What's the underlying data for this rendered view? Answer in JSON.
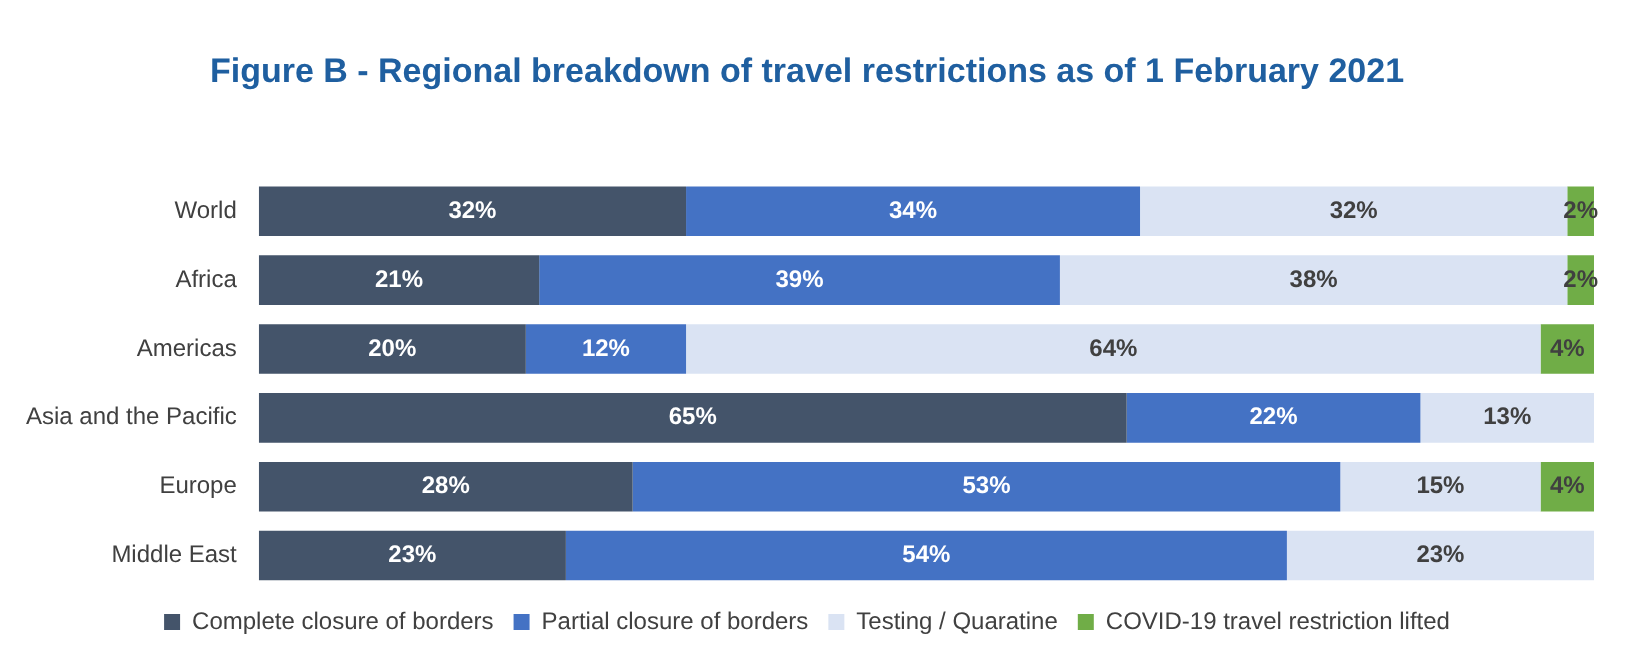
{
  "chart_data": {
    "type": "bar",
    "title": "Figure B - Regional breakdown of travel restrictions as of 1 February 2021",
    "orientation": "horizontal",
    "stacked": true,
    "tick_labels": "y",
    "grid": false,
    "legend": "bottom",
    "categories": [
      "World",
      "Africa",
      "Americas",
      "Asia and the Pacific",
      "Europe",
      "Middle East"
    ],
    "series": [
      {
        "name": "Complete closure of borders",
        "color": "#44546a",
        "values": [
          32,
          21,
          20,
          65,
          28,
          23
        ],
        "value_labels": [
          "32%",
          "21%",
          "20%",
          "65%",
          "28%",
          "23%"
        ]
      },
      {
        "name": "Partial closure of borders",
        "color": "#4472c4",
        "values": [
          34,
          39,
          12,
          22,
          53,
          54
        ],
        "value_labels": [
          "34%",
          "39%",
          "12%",
          "22%",
          "53%",
          "54%"
        ]
      },
      {
        "name": "Testing / Quaratine",
        "color": "#dae3f3",
        "values": [
          32,
          38,
          64,
          13,
          15,
          23
        ],
        "value_labels": [
          "32%",
          "38%",
          "64%",
          "13%",
          "15%",
          "23%"
        ]
      },
      {
        "name": "COVID-19 travel restriction lifted",
        "color": "#70ad47",
        "values": [
          2,
          2,
          4,
          null,
          4,
          null
        ],
        "value_labels": [
          "2%",
          "2%",
          "4%",
          null,
          "4%",
          null
        ]
      }
    ]
  }
}
